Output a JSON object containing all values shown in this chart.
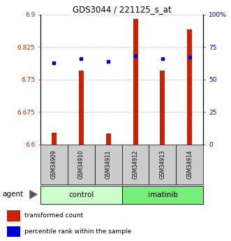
{
  "title": "GDS3044 / 221125_s_at",
  "samples": [
    "GSM34909",
    "GSM34910",
    "GSM34911",
    "GSM34912",
    "GSM34913",
    "GSM34914"
  ],
  "groups": [
    "control",
    "control",
    "control",
    "imatinib",
    "imatinib",
    "imatinib"
  ],
  "red_values": [
    6.627,
    6.77,
    6.625,
    6.89,
    6.77,
    6.865
  ],
  "blue_pct": [
    63,
    66,
    64,
    68,
    66,
    67
  ],
  "ymin": 6.6,
  "ymax": 6.9,
  "yticks": [
    6.6,
    6.675,
    6.75,
    6.825,
    6.9
  ],
  "ytick_labels": [
    "6.6",
    "6.675",
    "6.75",
    "6.825",
    "6.9"
  ],
  "right_yticks": [
    0,
    25,
    50,
    75,
    100
  ],
  "right_ytick_labels": [
    "0",
    "25",
    "50",
    "75",
    "100%"
  ],
  "bar_color": "#cc2200",
  "dot_color": "#0000cc",
  "control_color": "#ccffcc",
  "imatinib_color": "#77ee77",
  "sample_box_color": "#cccccc",
  "legend_red": "transformed count",
  "legend_blue": "percentile rank within the sample",
  "bar_width": 0.18
}
